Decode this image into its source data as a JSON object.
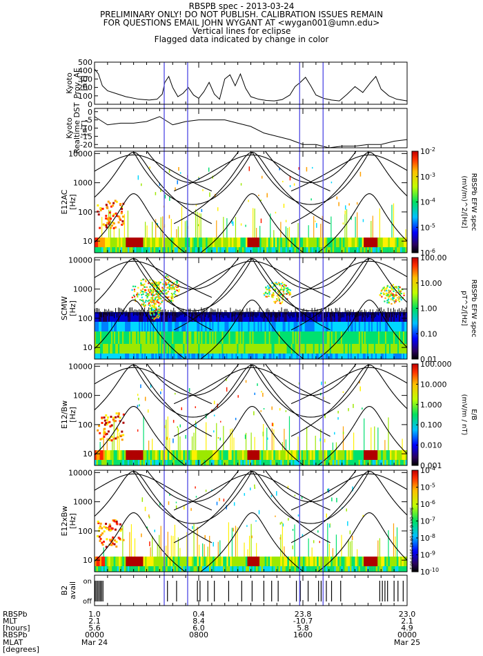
{
  "header": {
    "line1": "RBSPB spec - 2013-03-24",
    "line2": "PRELIMINARY ONLY! DO NOT PUBLISH. CALIBRATION ISSUES REMAIN",
    "line3": "FOR QUESTIONS EMAIL JOHN WYGANT AT <wygan001@umn.edu>",
    "line4": "Vertical lines for eclipse",
    "line5": "Flagged data indicated by change in color"
  },
  "footer": {
    "labels": [
      "RBSPb",
      "MLT",
      "[hours]",
      "RBSPb",
      "MLAT",
      "[degrees]"
    ],
    "mlt_values": [
      "1.0",
      "0.4",
      "23.8",
      "23.0"
    ],
    "mlat_values": [
      "2.1",
      "8.4",
      "-10.7",
      "2.1"
    ],
    "third_values": [
      "5.6",
      "6.0",
      "5.8",
      "4.9"
    ],
    "times": [
      "0000",
      "0800",
      "1600",
      "0000"
    ],
    "dates": [
      "Mar 24",
      "",
      "",
      "Mar 25"
    ]
  },
  "side_note": "Sun Oct 6 17:16:42 2013 v0.2",
  "chart_data": [
    {
      "type": "line",
      "ylabel": "Kyoto Prov. AE [nT]",
      "ylim": [
        0,
        500
      ],
      "yticks": [
        "500",
        "400",
        "300",
        "200",
        "100",
        "0"
      ],
      "x_hours": [
        0,
        0.3,
        0.6,
        1.0,
        1.6,
        2.4,
        3.4,
        4.2,
        4.8,
        5.2,
        5.4,
        5.7,
        6.0,
        6.4,
        6.8,
        7.2,
        7.6,
        8.0,
        8.4,
        8.8,
        9.2,
        9.6,
        10.0,
        10.4,
        10.8,
        11.2,
        11.6,
        12.0,
        12.6,
        13.2,
        13.8,
        14.4,
        15.0,
        15.4,
        15.8,
        16.2,
        16.6,
        17.0,
        17.6,
        18.2,
        18.8,
        19.4,
        20.0,
        20.6,
        21.2,
        21.6,
        22.0,
        22.6,
        23.2,
        24.0
      ],
      "y_values": [
        420,
        360,
        220,
        160,
        130,
        90,
        60,
        50,
        60,
        120,
        260,
        330,
        200,
        90,
        130,
        200,
        110,
        70,
        150,
        260,
        120,
        60,
        300,
        350,
        220,
        360,
        190,
        90,
        60,
        45,
        40,
        55,
        110,
        210,
        260,
        320,
        220,
        110,
        70,
        50,
        40,
        120,
        210,
        140,
        260,
        330,
        180,
        100,
        60,
        40
      ]
    },
    {
      "type": "line",
      "ylabel": "Kyoto Realtime DST [nT]",
      "ylim": [
        -22,
        2
      ],
      "yticks": [
        "0",
        "-5",
        "-10",
        "-15",
        "-20"
      ],
      "x_hours": [
        0,
        1,
        2,
        3,
        4,
        5,
        6,
        7,
        8,
        9,
        10,
        11,
        12,
        13,
        14,
        15,
        16,
        17,
        18,
        19,
        20,
        21,
        22,
        23,
        24
      ],
      "y_values": [
        -3,
        -8,
        -7,
        -7,
        -6,
        -3,
        -8,
        -6,
        -5,
        -5,
        -5,
        -7,
        -9,
        -13,
        -15,
        -17,
        -20,
        -20,
        -22,
        -21,
        -21,
        -20,
        -20,
        -18,
        -17
      ]
    },
    {
      "type": "heatmap",
      "ylabel": "E12AC [Hz]",
      "yticks": [
        "10000",
        "1000",
        "100",
        "10"
      ],
      "colorbar_label": "RBSPb EFW spec",
      "colorbar_units": "(mV/m)^2/[Hz]",
      "colorbar_ticks": [
        "10^-2",
        "10^-3",
        "10^-4",
        "10^-5",
        "10^-6"
      ]
    },
    {
      "type": "heatmap",
      "ylabel": "SCMW [Hz]",
      "yticks": [
        "10000",
        "1000",
        "100",
        "10"
      ],
      "colorbar_label": "RBSPb EFW spec",
      "colorbar_units": "pT^2/[Hz]",
      "colorbar_ticks": [
        "100.00",
        "10.00",
        "1.00",
        "0.10",
        "0.01"
      ]
    },
    {
      "type": "heatmap",
      "ylabel": "E12/Bw [Hz]",
      "yticks": [
        "10000",
        "1000",
        "100",
        "10"
      ],
      "colorbar_label": "E/B",
      "colorbar_units": "(mV/m / nT)",
      "colorbar_ticks": [
        "100.000",
        "10.000",
        "1.000",
        "0.100",
        "0.010",
        "0.001"
      ]
    },
    {
      "type": "heatmap",
      "ylabel": "E12xBw [Hz]",
      "yticks": [
        "10000",
        "1000",
        "100",
        "10"
      ],
      "colorbar_ticks": [
        "10^-4",
        "10^-5",
        "10^-6",
        "10^-7",
        "10^-8",
        "10^-9",
        "10^-10"
      ]
    },
    {
      "type": "bar",
      "ylabel": "B2 avail",
      "yticks": [
        "on",
        "off"
      ],
      "on_times_hours": [
        0.05,
        0.15,
        0.25,
        0.35,
        0.45,
        0.55,
        0.65,
        5.6,
        6.3,
        7.9,
        8.1,
        8.7,
        9.2,
        10.3,
        11.3,
        12.1,
        13.0,
        13.6,
        14.1,
        15.5,
        15.8,
        16.4,
        17.2,
        17.4,
        17.8,
        18.2,
        18.9,
        21.9,
        22.1,
        22.3,
        22.5,
        23.0,
        23.3,
        23.7
      ]
    }
  ],
  "eclipse_hours": [
    5.35,
    7.15,
    15.75,
    17.55
  ],
  "orbit_curve_params": {
    "mid_apex_hours": [
      3.0,
      12.1,
      21.1
    ],
    "rel_apex_hours": [
      3.0,
      12.05,
      21.1
    ]
  },
  "colors": {
    "eclipse_line": "#5a55e6",
    "axis": "#000000",
    "curve": "#000000"
  }
}
